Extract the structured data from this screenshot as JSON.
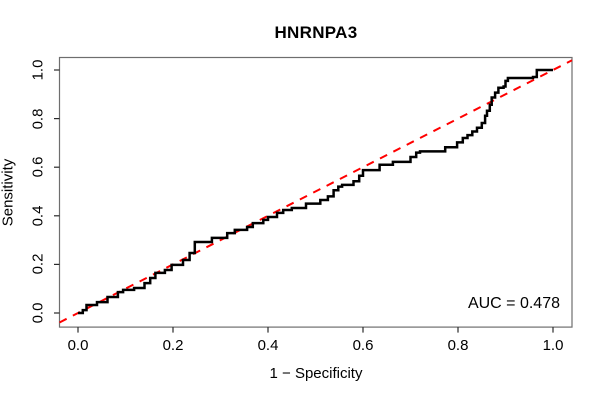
{
  "chart_data": {
    "type": "line",
    "title": "HNRNPA3",
    "xlabel": "1 − Specificity",
    "ylabel": "Sensitivity",
    "annotation": "AUC = 0.478",
    "auc": 0.478,
    "xlim": [
      0,
      1
    ],
    "ylim": [
      0,
      1
    ],
    "grid": false,
    "x_ticks": [
      0.0,
      0.2,
      0.4,
      0.6,
      0.8,
      1.0
    ],
    "y_ticks": [
      0.0,
      0.2,
      0.4,
      0.6,
      0.8,
      1.0
    ],
    "tick_label_format": [
      "0.0",
      "0.2",
      "0.4",
      "0.6",
      "0.8",
      "1.0"
    ],
    "colors": {
      "roc_curve": "#000000",
      "reference_line": "#ff0000",
      "box": "#6e6e6e",
      "tick": "#2a2a2a",
      "text": "#000000"
    },
    "reference_line": {
      "from": [
        0,
        0
      ],
      "to": [
        1,
        1
      ],
      "style": "dashed"
    },
    "series": [
      {
        "name": "ROC curve",
        "points": [
          [
            0.0,
            0.0
          ],
          [
            0.01,
            0.0
          ],
          [
            0.01,
            0.012
          ],
          [
            0.018,
            0.012
          ],
          [
            0.018,
            0.033
          ],
          [
            0.04,
            0.033
          ],
          [
            0.04,
            0.045
          ],
          [
            0.062,
            0.045
          ],
          [
            0.062,
            0.066
          ],
          [
            0.084,
            0.066
          ],
          [
            0.084,
            0.086
          ],
          [
            0.095,
            0.086
          ],
          [
            0.095,
            0.095
          ],
          [
            0.118,
            0.095
          ],
          [
            0.118,
            0.103
          ],
          [
            0.14,
            0.103
          ],
          [
            0.14,
            0.123
          ],
          [
            0.152,
            0.123
          ],
          [
            0.152,
            0.144
          ],
          [
            0.163,
            0.144
          ],
          [
            0.163,
            0.165
          ],
          [
            0.183,
            0.165
          ],
          [
            0.183,
            0.177
          ],
          [
            0.197,
            0.177
          ],
          [
            0.197,
            0.198
          ],
          [
            0.221,
            0.198
          ],
          [
            0.221,
            0.218
          ],
          [
            0.235,
            0.218
          ],
          [
            0.235,
            0.247
          ],
          [
            0.246,
            0.247
          ],
          [
            0.246,
            0.292
          ],
          [
            0.282,
            0.292
          ],
          [
            0.282,
            0.309
          ],
          [
            0.314,
            0.309
          ],
          [
            0.314,
            0.329
          ],
          [
            0.33,
            0.329
          ],
          [
            0.33,
            0.342
          ],
          [
            0.356,
            0.342
          ],
          [
            0.356,
            0.354
          ],
          [
            0.368,
            0.354
          ],
          [
            0.368,
            0.37
          ],
          [
            0.39,
            0.37
          ],
          [
            0.39,
            0.383
          ],
          [
            0.4,
            0.383
          ],
          [
            0.4,
            0.395
          ],
          [
            0.419,
            0.395
          ],
          [
            0.419,
            0.412
          ],
          [
            0.432,
            0.412
          ],
          [
            0.432,
            0.424
          ],
          [
            0.45,
            0.424
          ],
          [
            0.45,
            0.432
          ],
          [
            0.48,
            0.432
          ],
          [
            0.48,
            0.45
          ],
          [
            0.51,
            0.45
          ],
          [
            0.51,
            0.465
          ],
          [
            0.526,
            0.465
          ],
          [
            0.526,
            0.48
          ],
          [
            0.538,
            0.48
          ],
          [
            0.538,
            0.505
          ],
          [
            0.548,
            0.505
          ],
          [
            0.548,
            0.52
          ],
          [
            0.556,
            0.52
          ],
          [
            0.556,
            0.527
          ],
          [
            0.58,
            0.527
          ],
          [
            0.58,
            0.542
          ],
          [
            0.592,
            0.542
          ],
          [
            0.592,
            0.565
          ],
          [
            0.6,
            0.565
          ],
          [
            0.6,
            0.588
          ],
          [
            0.635,
            0.588
          ],
          [
            0.635,
            0.61
          ],
          [
            0.663,
            0.61
          ],
          [
            0.663,
            0.622
          ],
          [
            0.7,
            0.622
          ],
          [
            0.7,
            0.642
          ],
          [
            0.712,
            0.642
          ],
          [
            0.712,
            0.66
          ],
          [
            0.72,
            0.66
          ],
          [
            0.72,
            0.665
          ],
          [
            0.773,
            0.665
          ],
          [
            0.773,
            0.682
          ],
          [
            0.798,
            0.682
          ],
          [
            0.798,
            0.702
          ],
          [
            0.81,
            0.702
          ],
          [
            0.81,
            0.72
          ],
          [
            0.82,
            0.72
          ],
          [
            0.82,
            0.732
          ],
          [
            0.83,
            0.732
          ],
          [
            0.83,
            0.747
          ],
          [
            0.84,
            0.747
          ],
          [
            0.84,
            0.762
          ],
          [
            0.85,
            0.762
          ],
          [
            0.85,
            0.782
          ],
          [
            0.857,
            0.782
          ],
          [
            0.857,
            0.812
          ],
          [
            0.861,
            0.812
          ],
          [
            0.861,
            0.832
          ],
          [
            0.867,
            0.832
          ],
          [
            0.867,
            0.857
          ],
          [
            0.871,
            0.857
          ],
          [
            0.871,
            0.887
          ],
          [
            0.878,
            0.887
          ],
          [
            0.878,
            0.907
          ],
          [
            0.885,
            0.907
          ],
          [
            0.885,
            0.927
          ],
          [
            0.896,
            0.927
          ],
          [
            0.896,
            0.932
          ],
          [
            0.9,
            0.932
          ],
          [
            0.9,
            0.955
          ],
          [
            0.905,
            0.955
          ],
          [
            0.905,
            0.967
          ],
          [
            0.958,
            0.967
          ],
          [
            0.958,
            0.971
          ],
          [
            0.966,
            0.971
          ],
          [
            0.966,
            1.0
          ],
          [
            1.0,
            1.0
          ]
        ]
      }
    ]
  }
}
